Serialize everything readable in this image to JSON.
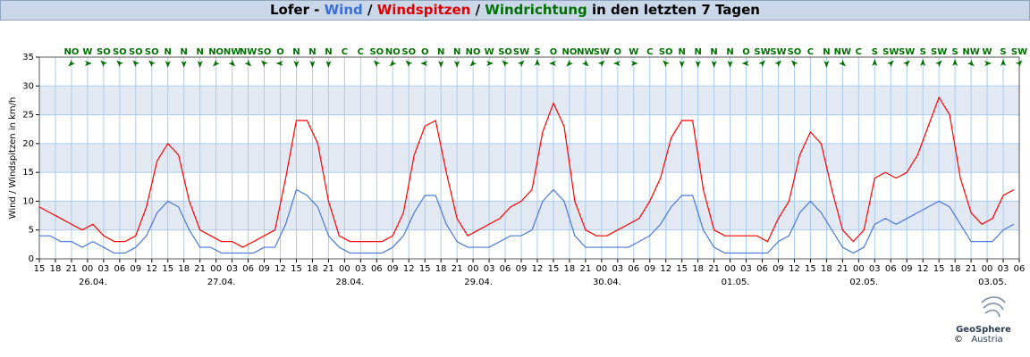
{
  "chart_data": {
    "type": "line",
    "title_parts": [
      {
        "text": "Lofer - ",
        "color": "#000000"
      },
      {
        "text": "Wind",
        "color": "#3a6fd8"
      },
      {
        "text": " / ",
        "color": "#000000"
      },
      {
        "text": "Windspitzen",
        "color": "#e00000"
      },
      {
        "text": " / ",
        "color": "#000000"
      },
      {
        "text": "Windrichtung",
        "color": "#007000"
      },
      {
        "text": " in den letzten 7 Tagen",
        "color": "#000000"
      }
    ],
    "y_label": "Wind / Windspitzen in km/h",
    "ylim": [
      0,
      35
    ],
    "yticks": [
      0,
      5,
      10,
      15,
      20,
      25,
      30,
      35
    ],
    "grid": true,
    "banded": true,
    "xlim": [
      0,
      183
    ],
    "xticks": [
      {
        "value": 0,
        "label": "15"
      },
      {
        "value": 3,
        "label": "18"
      },
      {
        "value": 6,
        "label": "21"
      },
      {
        "value": 9,
        "label": "00"
      },
      {
        "value": 12,
        "label": "03"
      },
      {
        "value": 15,
        "label": "06"
      },
      {
        "value": 18,
        "label": "09"
      },
      {
        "value": 21,
        "label": "12"
      },
      {
        "value": 24,
        "label": "15"
      },
      {
        "value": 27,
        "label": "18"
      },
      {
        "value": 30,
        "label": "21"
      },
      {
        "value": 33,
        "label": "00"
      },
      {
        "value": 36,
        "label": "03"
      },
      {
        "value": 39,
        "label": "06"
      },
      {
        "value": 42,
        "label": "09"
      },
      {
        "value": 45,
        "label": "12"
      },
      {
        "value": 48,
        "label": "15"
      },
      {
        "value": 51,
        "label": "18"
      },
      {
        "value": 54,
        "label": "21"
      },
      {
        "value": 57,
        "label": "00"
      },
      {
        "value": 60,
        "label": "03"
      },
      {
        "value": 63,
        "label": "06"
      },
      {
        "value": 66,
        "label": "09"
      },
      {
        "value": 69,
        "label": "12"
      },
      {
        "value": 72,
        "label": "15"
      },
      {
        "value": 75,
        "label": "18"
      },
      {
        "value": 78,
        "label": "21"
      },
      {
        "value": 81,
        "label": "00"
      },
      {
        "value": 84,
        "label": "03"
      },
      {
        "value": 87,
        "label": "06"
      },
      {
        "value": 90,
        "label": "09"
      },
      {
        "value": 93,
        "label": "12"
      },
      {
        "value": 96,
        "label": "15"
      },
      {
        "value": 99,
        "label": "18"
      },
      {
        "value": 102,
        "label": "21"
      },
      {
        "value": 105,
        "label": "00"
      },
      {
        "value": 108,
        "label": "03"
      },
      {
        "value": 111,
        "label": "06"
      },
      {
        "value": 114,
        "label": "09"
      },
      {
        "value": 117,
        "label": "12"
      },
      {
        "value": 120,
        "label": "15"
      },
      {
        "value": 123,
        "label": "18"
      },
      {
        "value": 126,
        "label": "21"
      },
      {
        "value": 129,
        "label": "00"
      },
      {
        "value": 132,
        "label": "03"
      },
      {
        "value": 135,
        "label": "06"
      },
      {
        "value": 138,
        "label": "09"
      },
      {
        "value": 141,
        "label": "12"
      },
      {
        "value": 144,
        "label": "15"
      },
      {
        "value": 147,
        "label": "18"
      },
      {
        "value": 150,
        "label": "21"
      },
      {
        "value": 153,
        "label": "00"
      },
      {
        "value": 156,
        "label": "03"
      },
      {
        "value": 159,
        "label": "06"
      },
      {
        "value": 162,
        "label": "09"
      },
      {
        "value": 165,
        "label": "12"
      },
      {
        "value": 168,
        "label": "15"
      },
      {
        "value": 171,
        "label": "18"
      },
      {
        "value": 174,
        "label": "21"
      },
      {
        "value": 177,
        "label": "00"
      },
      {
        "value": 180,
        "label": "03"
      },
      {
        "value": 183,
        "label": "06"
      }
    ],
    "day_labels": [
      {
        "value": 9,
        "label": "26.04."
      },
      {
        "value": 33,
        "label": "27.04."
      },
      {
        "value": 57,
        "label": "28.04."
      },
      {
        "value": 81,
        "label": "29.04."
      },
      {
        "value": 105,
        "label": "30.04."
      },
      {
        "value": 129,
        "label": "01.05."
      },
      {
        "value": 153,
        "label": "02.05."
      },
      {
        "value": 177,
        "label": "03.05."
      }
    ],
    "x": [
      0,
      2,
      4,
      6,
      8,
      10,
      12,
      14,
      16,
      18,
      20,
      22,
      24,
      26,
      28,
      30,
      32,
      34,
      36,
      38,
      40,
      42,
      44,
      46,
      48,
      50,
      52,
      54,
      56,
      58,
      60,
      62,
      64,
      66,
      68,
      70,
      72,
      74,
      76,
      78,
      80,
      82,
      84,
      86,
      88,
      90,
      92,
      94,
      96,
      98,
      100,
      102,
      104,
      106,
      108,
      110,
      112,
      114,
      116,
      118,
      120,
      122,
      124,
      126,
      128,
      130,
      132,
      134,
      136,
      138,
      140,
      142,
      144,
      146,
      148,
      150,
      152,
      154,
      156,
      158,
      160,
      162,
      164,
      166,
      168,
      170,
      172,
      174,
      176,
      178,
      180,
      182
    ],
    "series": [
      {
        "name": "Windspitzen",
        "color": "#ff0000",
        "values": [
          9,
          8,
          7,
          6,
          5,
          6,
          4,
          3,
          3,
          4,
          9,
          17,
          20,
          18,
          10,
          5,
          4,
          3,
          3,
          2,
          3,
          4,
          5,
          14,
          24,
          24,
          20,
          10,
          4,
          3,
          3,
          3,
          3,
          4,
          8,
          18,
          23,
          24,
          15,
          7,
          4,
          5,
          6,
          7,
          9,
          10,
          12,
          22,
          27,
          23,
          10,
          5,
          4,
          4,
          5,
          6,
          7,
          10,
          14,
          21,
          24,
          24,
          12,
          5,
          4,
          4,
          4,
          4,
          3,
          7,
          10,
          18,
          22,
          20,
          12,
          5,
          3,
          5,
          14,
          15,
          14,
          15,
          18,
          23,
          28,
          25,
          14,
          8,
          6,
          7,
          11,
          12
        ]
      },
      {
        "name": "Wind",
        "color": "#4a78d8",
        "values": [
          4,
          4,
          3,
          3,
          2,
          3,
          2,
          1,
          1,
          2,
          4,
          8,
          10,
          9,
          5,
          2,
          2,
          1,
          1,
          1,
          1,
          2,
          2,
          6,
          12,
          11,
          9,
          4,
          2,
          1,
          1,
          1,
          1,
          2,
          4,
          8,
          11,
          11,
          6,
          3,
          2,
          2,
          2,
          3,
          4,
          4,
          5,
          10,
          12,
          10,
          4,
          2,
          2,
          2,
          2,
          2,
          3,
          4,
          6,
          9,
          11,
          11,
          5,
          2,
          1,
          1,
          1,
          1,
          1,
          3,
          4,
          8,
          10,
          8,
          5,
          2,
          1,
          2,
          6,
          7,
          6,
          7,
          8,
          9,
          10,
          9,
          6,
          3,
          3,
          3,
          5,
          6
        ]
      }
    ],
    "wind_direction": {
      "color": "#007000",
      "x": [
        6,
        9,
        12,
        15,
        18,
        21,
        24,
        27,
        30,
        33,
        36,
        39,
        42,
        45,
        48,
        51,
        54,
        57,
        60,
        63,
        66,
        69,
        72,
        75,
        78,
        81,
        84,
        87,
        90,
        93,
        96,
        99,
        102,
        105,
        108,
        111,
        114,
        117,
        120,
        123,
        126,
        129,
        132,
        135,
        138,
        141,
        144,
        147,
        150,
        153,
        156,
        159,
        162,
        165,
        168,
        171,
        174,
        177,
        180,
        183
      ],
      "labels": [
        "NO",
        "W",
        "SO",
        "SO",
        "SO",
        "SO",
        "N",
        "N",
        "N",
        "NO",
        "NW",
        "NW",
        "SO",
        "O",
        "N",
        "N",
        "N",
        "C",
        "C",
        "SO",
        "NO",
        "SO",
        "O",
        "N",
        "N",
        "NO",
        "W",
        "SO",
        "SW",
        "S",
        "O",
        "NO",
        "NW",
        "SW",
        "O",
        "W",
        "C",
        "SO",
        "N",
        "N",
        "N",
        "N",
        "O",
        "SW",
        "SW",
        "SO",
        "C",
        "N",
        "NW",
        "C",
        "S",
        "SW",
        "SW",
        "S",
        "SW",
        "S",
        "NW",
        "W",
        "S",
        "SW"
      ]
    },
    "logo": {
      "name": "GeoSphere",
      "sub": "Austria",
      "copyright": "©"
    }
  }
}
